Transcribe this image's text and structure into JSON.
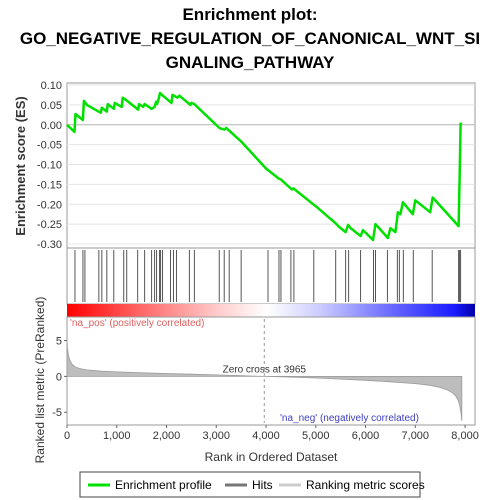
{
  "chart_data": {
    "type": "line",
    "title": [
      "Enrichment plot:",
      "GO_NEGATIVE_REGULATION_OF_CANONICAL_WNT_SI",
      "GNALING_PATHWAY"
    ],
    "es_panel": {
      "ylabel": "Enrichment score (ES)",
      "ylim": [
        -0.3,
        0.1
      ],
      "yticks": [
        "0.10",
        "0.05",
        "0.00",
        "-0.05",
        "-0.10",
        "-0.15",
        "-0.20",
        "-0.25",
        "-0.30"
      ],
      "series": [
        {
          "name": "Enrichment profile",
          "color": "#00e000",
          "x": [
            0,
            150,
            170,
            320,
            340,
            400,
            680,
            700,
            800,
            820,
            940,
            960,
            1100,
            1120,
            1190,
            1430,
            1450,
            1530,
            1560,
            1700,
            1760,
            1790,
            1810,
            1840,
            1870,
            1920,
            2100,
            2120,
            2220,
            2260,
            2480,
            2500,
            2560,
            3060,
            3100,
            3170,
            3200,
            3500,
            4000,
            4250,
            4300,
            4520,
            4550,
            4950,
            5000,
            5400,
            5450,
            5600,
            5650,
            5700,
            5900,
            5950,
            6150,
            6200,
            6450,
            6500,
            6600,
            6650,
            6700,
            6750,
            6950,
            7000,
            7300,
            7350,
            7870,
            7890,
            7910,
            7930
          ],
          "y": [
            0.0,
            -0.018,
            0.027,
            0.012,
            0.06,
            0.05,
            0.03,
            0.043,
            0.033,
            0.052,
            0.04,
            0.055,
            0.045,
            0.068,
            0.062,
            0.038,
            0.052,
            0.045,
            0.052,
            0.04,
            0.045,
            0.058,
            0.052,
            0.065,
            0.08,
            0.074,
            0.055,
            0.075,
            0.068,
            0.073,
            0.05,
            0.055,
            0.052,
            -0.008,
            -0.01,
            -0.012,
            -0.008,
            -0.042,
            -0.11,
            -0.135,
            -0.138,
            -0.163,
            -0.16,
            -0.2,
            -0.205,
            -0.248,
            -0.255,
            -0.27,
            -0.252,
            -0.26,
            -0.28,
            -0.265,
            -0.29,
            -0.25,
            -0.285,
            -0.26,
            -0.27,
            -0.22,
            -0.225,
            -0.195,
            -0.225,
            -0.19,
            -0.22,
            -0.183,
            -0.255,
            -0.135,
            0.003,
            0.0
          ]
        }
      ]
    },
    "hits": [
      160,
      320,
      360,
      640,
      700,
      800,
      940,
      1140,
      1200,
      1420,
      1560,
      1700,
      1760,
      1800,
      1860,
      1880,
      1920,
      2080,
      2140,
      2200,
      2460,
      2560,
      3060,
      3160,
      3260,
      3500,
      4040,
      4260,
      4300,
      4500,
      4560,
      4960,
      5400,
      5600,
      5660,
      5900,
      6160,
      6200,
      6440,
      6640,
      6680,
      6760,
      6960,
      7340,
      7870,
      7890,
      7910
    ],
    "ranked_panel": {
      "ylabel": "Ranked list metric (PreRanked)",
      "ylim": [
        -6.5,
        8.0
      ],
      "yticks": [
        "5",
        "0",
        "-5"
      ],
      "xlabel": "Rank in Ordered Dataset",
      "xlim": [
        0,
        8200
      ],
      "xticks": [
        "0",
        "1,000",
        "2,000",
        "3,000",
        "4,000",
        "5,000",
        "6,000",
        "7,000",
        "8,000"
      ],
      "zero_cross_label": "Zero cross at 3965",
      "zero_cross": 3965,
      "pos_label": "'na_pos' (positively correlated)",
      "neg_label": "'na_neg' (negatively correlated)",
      "profile_x": [
        0,
        10,
        30,
        60,
        100,
        160,
        250,
        400,
        700,
        1000,
        1500,
        2000,
        2500,
        3000,
        3500,
        3965,
        4500,
        5000,
        5500,
        6000,
        6500,
        7000,
        7300,
        7500,
        7650,
        7750,
        7820,
        7860,
        7890,
        7920,
        7935
      ],
      "profile_y": [
        5.2,
        3.8,
        2.9,
        2.2,
        1.7,
        1.35,
        1.1,
        0.9,
        0.72,
        0.62,
        0.5,
        0.4,
        0.3,
        0.2,
        0.1,
        0.0,
        -0.1,
        -0.22,
        -0.38,
        -0.55,
        -0.75,
        -1.0,
        -1.25,
        -1.55,
        -1.9,
        -2.3,
        -2.8,
        -3.3,
        -4.0,
        -5.2,
        -6.2
      ]
    },
    "legend": [
      {
        "label": "Enrichment profile",
        "color": "#00e000"
      },
      {
        "label": "Hits",
        "color": "#777777"
      },
      {
        "label": "Ranking metric scores",
        "color": "#cccccc"
      }
    ]
  }
}
